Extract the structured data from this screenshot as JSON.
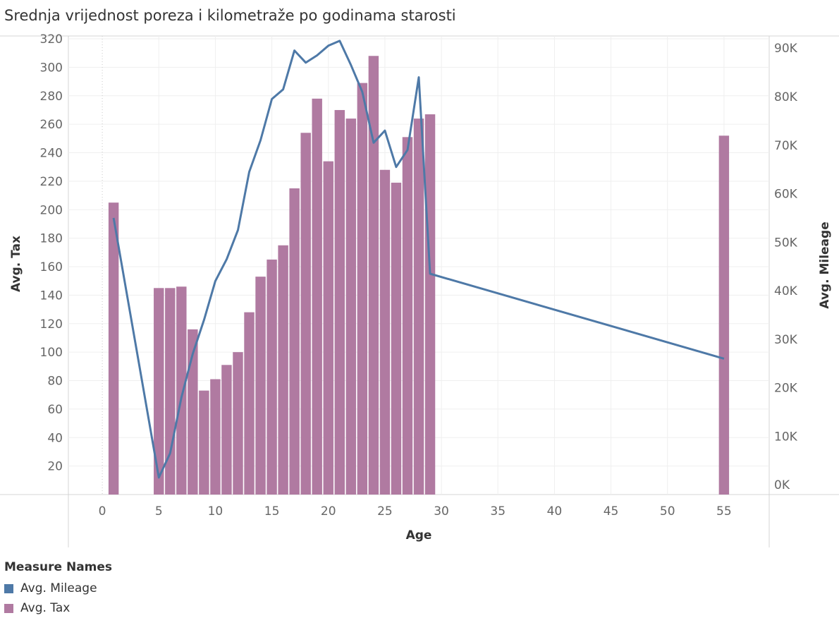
{
  "title": "Srednja vrijednost poreza i kilometraže po godinama starosti",
  "legend": {
    "title": "Measure Names",
    "items": [
      {
        "label": "Avg. Mileage",
        "color": "#4e79a7"
      },
      {
        "label": "Avg. Tax",
        "color": "#b07aa1"
      }
    ]
  },
  "chart_data": {
    "type": "bar",
    "xlabel": "Age",
    "ylabel": "Avg. Tax",
    "y2label": "Avg. Mileage",
    "xlim": [
      -3,
      59
    ],
    "ylim": [
      0,
      322
    ],
    "y2lim": [
      -2000,
      92500
    ],
    "xticks": [
      0,
      5,
      10,
      15,
      20,
      25,
      30,
      35,
      40,
      45,
      50,
      55
    ],
    "yticks": [
      20,
      40,
      60,
      80,
      100,
      120,
      140,
      160,
      180,
      200,
      220,
      240,
      260,
      280,
      300,
      320
    ],
    "y2ticks": [
      0,
      10000,
      20000,
      30000,
      40000,
      50000,
      60000,
      70000,
      80000,
      90000
    ],
    "y2ticklabels": [
      "0K",
      "10K",
      "20K",
      "30K",
      "40K",
      "50K",
      "60K",
      "70K",
      "80K",
      "90K"
    ],
    "grid": true,
    "legend_position": "bottom-left",
    "series": [
      {
        "name": "Avg. Tax",
        "type": "bar",
        "color": "#b07aa1",
        "x": [
          1,
          5,
          6,
          7,
          8,
          9,
          10,
          11,
          12,
          13,
          14,
          15,
          16,
          17,
          18,
          19,
          20,
          21,
          22,
          23,
          24,
          25,
          26,
          27,
          28,
          29,
          55
        ],
        "values": [
          205,
          145,
          145,
          146,
          116,
          73,
          81,
          91,
          100,
          128,
          153,
          165,
          175,
          215,
          254,
          278,
          234,
          270,
          264,
          289,
          308,
          228,
          219,
          251,
          264,
          267,
          252
        ]
      },
      {
        "name": "Avg. Mileage",
        "type": "line",
        "color": "#4e79a7",
        "x": [
          1,
          5,
          6,
          7,
          8,
          9,
          10,
          11,
          12,
          13,
          14,
          15,
          16,
          17,
          18,
          19,
          20,
          21,
          22,
          23,
          24,
          25,
          26,
          27,
          28,
          29,
          55
        ],
        "values": [
          55000,
          1500,
          6500,
          18000,
          27000,
          34000,
          42000,
          46500,
          52500,
          64500,
          71000,
          79500,
          81500,
          89500,
          87000,
          88500,
          90500,
          91500,
          86500,
          81000,
          70500,
          73000,
          65500,
          69000,
          84000,
          43500,
          26000
        ]
      }
    ]
  }
}
